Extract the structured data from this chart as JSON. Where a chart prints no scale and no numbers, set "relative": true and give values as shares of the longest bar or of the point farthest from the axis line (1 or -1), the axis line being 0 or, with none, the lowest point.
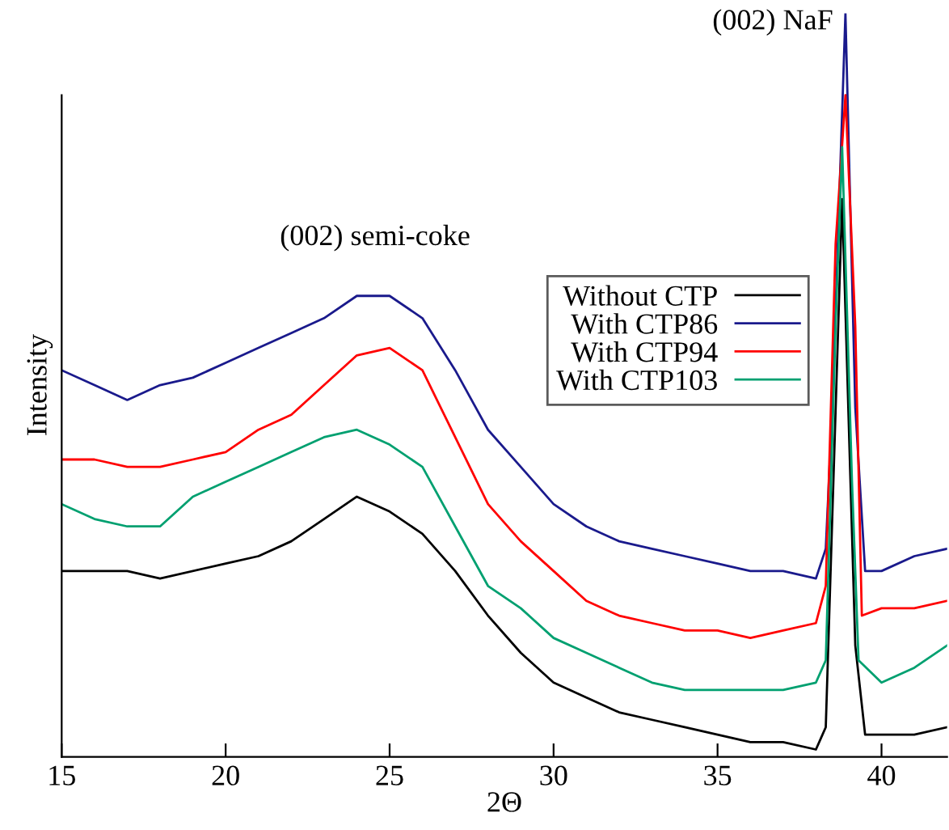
{
  "chart_data": {
    "type": "line",
    "relative": true,
    "xlabel": "2Θ",
    "ylabel": "Intensity",
    "xlim": [
      15,
      42
    ],
    "xticks": [
      15,
      20,
      25,
      30,
      35,
      40
    ],
    "legend": "right",
    "grid": false,
    "annotations": [
      "(002) semi-coke",
      {
        "text": "(002) NaF",
        "x": 38.8,
        "y": 0.97
      }
    ],
    "series": [
      {
        "name": "Without CTP",
        "color": "#000000",
        "x": [
          15,
          17,
          18,
          20,
          21,
          22,
          23,
          24,
          25,
          26,
          27,
          28,
          29,
          30,
          31,
          32,
          33,
          34,
          35,
          36,
          37,
          38,
          38.3,
          38.8,
          39.2,
          39.5,
          40,
          41,
          42
        ],
        "values": [
          0.25,
          0.25,
          0.24,
          0.26,
          0.27,
          0.29,
          0.32,
          0.35,
          0.33,
          0.3,
          0.25,
          0.19,
          0.14,
          0.1,
          0.08,
          0.06,
          0.05,
          0.04,
          0.03,
          0.02,
          0.02,
          0.01,
          0.04,
          0.75,
          0.15,
          0.03,
          0.03,
          0.03,
          0.04
        ]
      },
      {
        "name": "With CTP86",
        "color": "#1a1a8c",
        "x": [
          15,
          16,
          17,
          18,
          19,
          20,
          21,
          22,
          23,
          24,
          25,
          26,
          27,
          28,
          29,
          30,
          31,
          32,
          33,
          34,
          35,
          36,
          37,
          38,
          38.3,
          38.5,
          38.9,
          39.2,
          39.5,
          40,
          41,
          42
        ],
        "values": [
          0.52,
          0.5,
          0.48,
          0.5,
          0.51,
          0.53,
          0.55,
          0.57,
          0.59,
          0.62,
          0.62,
          0.59,
          0.52,
          0.44,
          0.39,
          0.34,
          0.31,
          0.29,
          0.28,
          0.27,
          0.26,
          0.25,
          0.25,
          0.24,
          0.28,
          0.47,
          1.0,
          0.47,
          0.25,
          0.25,
          0.27,
          0.28
        ]
      },
      {
        "name": "With CTP94",
        "color": "#ff0000",
        "x": [
          15,
          16,
          17,
          18,
          19,
          20,
          21,
          22,
          23,
          24,
          25,
          26,
          27,
          28,
          29,
          30,
          31,
          32,
          33,
          34,
          35,
          36,
          37,
          38,
          38.3,
          38.6,
          38.9,
          39.2,
          39.4,
          40,
          41,
          42
        ],
        "values": [
          0.4,
          0.4,
          0.39,
          0.39,
          0.4,
          0.41,
          0.44,
          0.46,
          0.5,
          0.54,
          0.55,
          0.52,
          0.43,
          0.34,
          0.29,
          0.25,
          0.21,
          0.19,
          0.18,
          0.17,
          0.17,
          0.16,
          0.17,
          0.18,
          0.23,
          0.69,
          0.89,
          0.58,
          0.19,
          0.2,
          0.2,
          0.21
        ]
      },
      {
        "name": "With CTP103",
        "color": "#00a070",
        "x": [
          15,
          16,
          17,
          18,
          19,
          20,
          21,
          22,
          23,
          24,
          25,
          26,
          27,
          28,
          29,
          30,
          31,
          32,
          33,
          34,
          35,
          36,
          37,
          38,
          38.3,
          38.6,
          38.8,
          39.1,
          39.3,
          40,
          41,
          42
        ],
        "values": [
          0.34,
          0.32,
          0.31,
          0.31,
          0.35,
          0.37,
          0.39,
          0.41,
          0.43,
          0.44,
          0.42,
          0.39,
          0.31,
          0.23,
          0.2,
          0.16,
          0.14,
          0.12,
          0.1,
          0.09,
          0.09,
          0.09,
          0.09,
          0.1,
          0.13,
          0.58,
          0.82,
          0.37,
          0.13,
          0.1,
          0.12,
          0.15
        ]
      }
    ]
  }
}
